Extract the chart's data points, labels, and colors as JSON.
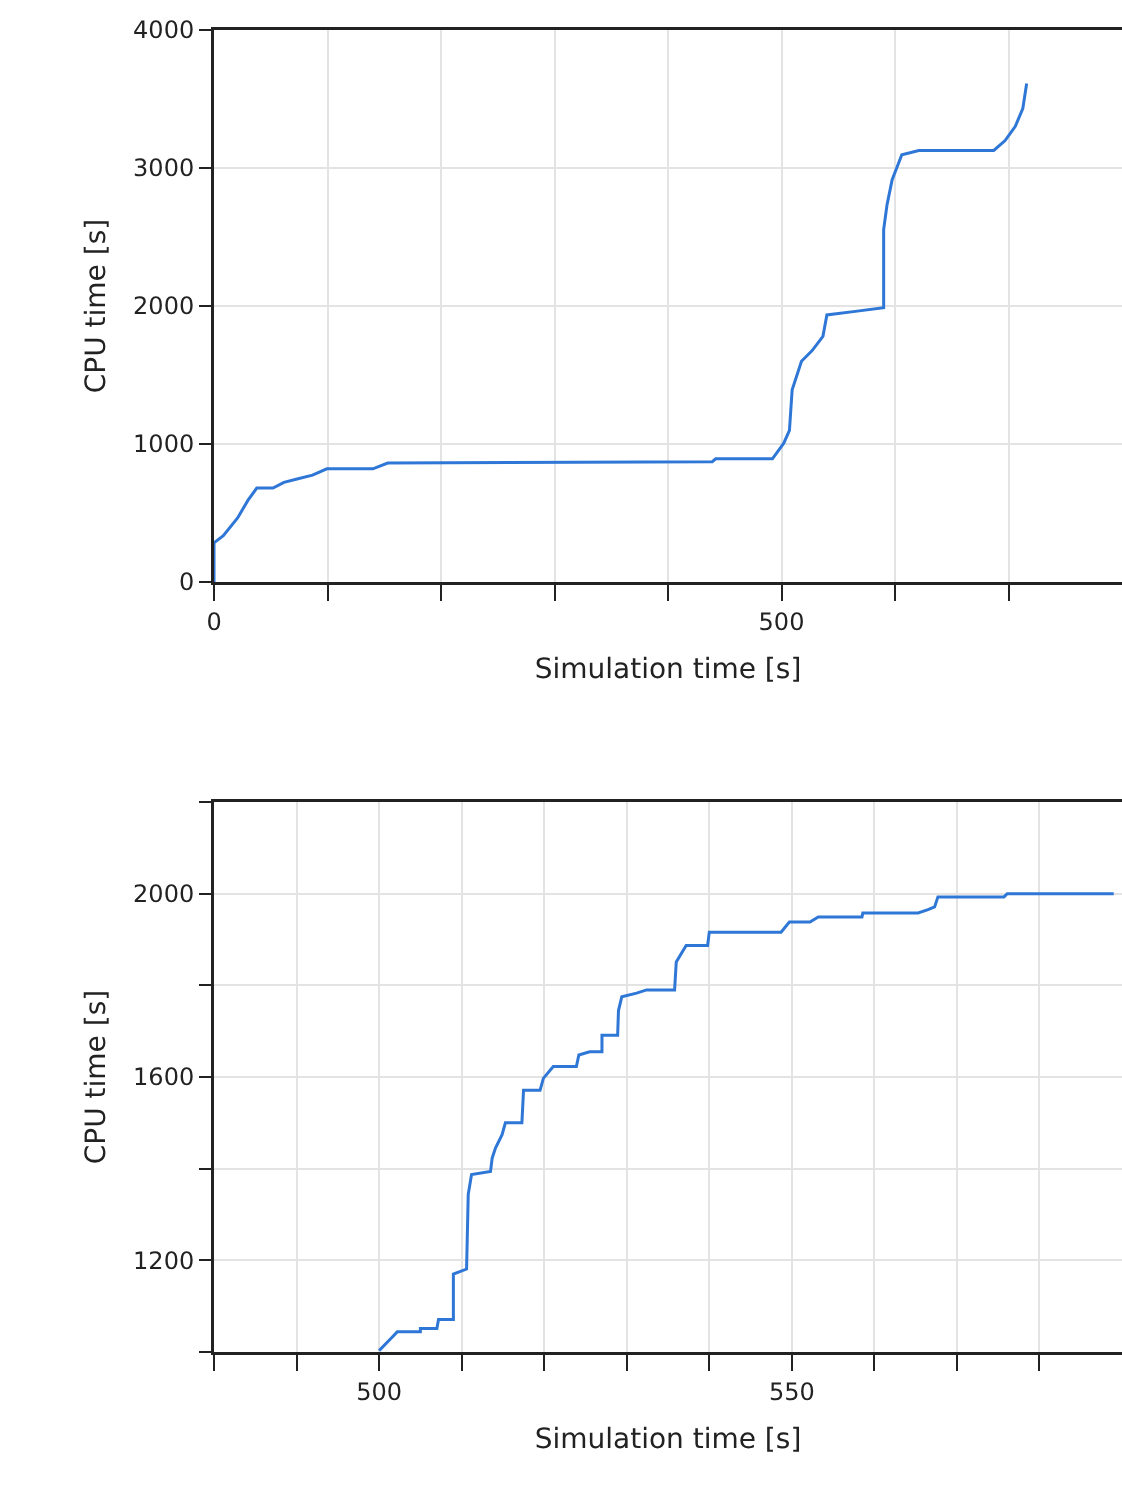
{
  "chart_data": [
    {
      "type": "line",
      "xlabel": "Simulation time [s]",
      "ylabel": "CPU time [s]",
      "xlim": [
        0,
        800
      ],
      "ylim": [
        0,
        4000
      ],
      "xticks": [
        0,
        {
          "value": 100,
          "label": null
        },
        {
          "value": 200,
          "label": null
        },
        {
          "value": 300,
          "label": null
        },
        {
          "value": 400,
          "label": null
        },
        500,
        {
          "value": 600,
          "label": null
        },
        {
          "value": 700,
          "label": null
        }
      ],
      "yticks": [
        0,
        1000,
        2000,
        3000,
        4000
      ],
      "grid": true,
      "color": "#2f77d6",
      "x": [
        0,
        0,
        8.2,
        20.8,
        30,
        37.7,
        52,
        61.6,
        74,
        86.8,
        99.4,
        140,
        153,
        439,
        442,
        492,
        502,
        507,
        509.4,
        517.6,
        527,
        536.5,
        540,
        565,
        590,
        590,
        593,
        597.5,
        606,
        621,
        687,
        697,
        706,
        712.6,
        716
      ],
      "values": [
        0,
        284,
        335,
        464,
        593,
        681,
        681,
        722,
        748,
        774,
        820,
        820,
        862,
        872,
        893,
        893,
        1006,
        1099,
        1393,
        1600,
        1677,
        1780,
        1935,
        1961,
        1987,
        2554,
        2735,
        2915,
        3096,
        3127,
        3127,
        3199,
        3302,
        3431,
        3612
      ]
    },
    {
      "type": "line",
      "xlabel": "Simulation time [s]",
      "ylabel": "CPU time [s]",
      "xlim": [
        480,
        590
      ],
      "ylim": [
        1000,
        2200
      ],
      "xticks": [
        {
          "value": 480,
          "label": null
        },
        {
          "value": 490,
          "label": null
        },
        500,
        {
          "value": 510,
          "label": null
        },
        {
          "value": 520,
          "label": null
        },
        {
          "value": 530,
          "label": null
        },
        {
          "value": 540,
          "label": null
        },
        550,
        {
          "value": 560,
          "label": null
        },
        {
          "value": 570,
          "label": null
        },
        {
          "value": 580,
          "label": null
        }
      ],
      "yticks": [
        {
          "value": 1000,
          "label": null
        },
        1200,
        {
          "value": 1400,
          "label": null
        },
        1600,
        {
          "value": 1800,
          "label": null
        },
        2000,
        {
          "value": 2200,
          "label": null
        }
      ],
      "grid": true,
      "color": "#2f77d6",
      "x": [
        500,
        501.4,
        502.2,
        505,
        505,
        507,
        507.2,
        509,
        509,
        510.6,
        510.8,
        511.2,
        513.5,
        513.7,
        514.1,
        514.9,
        515.3,
        517.3,
        517.5,
        519.5,
        519.9,
        521.1,
        523.9,
        524.2,
        525.5,
        527,
        527,
        528.9,
        529,
        529.4,
        531.2,
        532.4,
        535.8,
        536,
        537.2,
        539.8,
        540,
        548.7,
        549.7,
        552.2,
        553.2,
        558.5,
        558.6,
        565.3,
        566.5,
        567.3,
        567.7,
        575.7,
        576.1,
        589
      ],
      "values": [
        1003,
        1029,
        1044,
        1044,
        1051,
        1051,
        1071,
        1071,
        1170,
        1181,
        1344,
        1387,
        1394,
        1423,
        1445,
        1474,
        1500,
        1500,
        1571,
        1571,
        1597,
        1623,
        1623,
        1648,
        1655,
        1655,
        1691,
        1691,
        1745,
        1775,
        1783,
        1790,
        1790,
        1851,
        1887,
        1887,
        1916,
        1916,
        1938,
        1938,
        1949,
        1949,
        1958,
        1958,
        1965,
        1971,
        1993,
        1993,
        2000,
        2000
      ]
    }
  ]
}
